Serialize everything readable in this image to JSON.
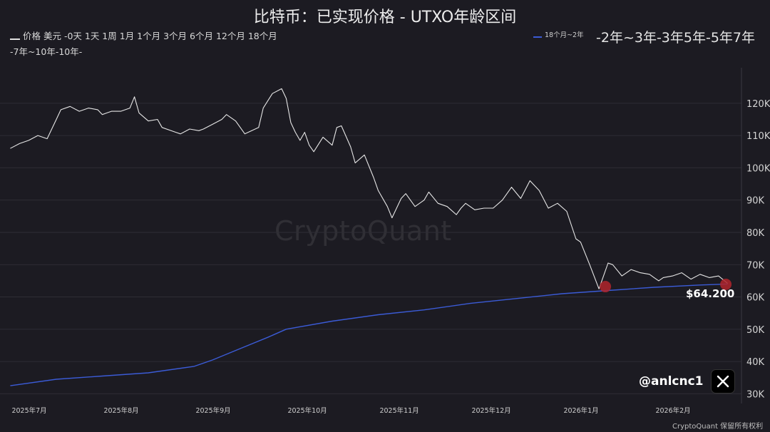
{
  "title": "比特币：已实现价格 - UTXO年龄区间",
  "legend": {
    "left_line1": "价格 美元 -0天 1天 1周 1月 1个月 3个月 6个月 12个月 18个月",
    "left_line2": "-7年~10年-10年-",
    "mid": "18个月~2年",
    "right": "-2年~3年-3年5年-5年7年"
  },
  "watermark": "CryptoQuant",
  "price_label": "$64.200",
  "handle": "@anlcnc1",
  "footer": "CryptoQuant 保留所有权利",
  "colors": {
    "background": "#1c1b22",
    "price_line": "#e6e6e6",
    "utxo_line": "#3b5bd6",
    "marker": "#b0242c"
  },
  "chart_data": {
    "type": "line",
    "title": "比特币：已实现价格 - UTXO年龄区间",
    "y_ticks": [
      30000,
      40000,
      50000,
      60000,
      70000,
      80000,
      90000,
      100000,
      110000,
      120000
    ],
    "y_tick_labels": [
      "30K",
      "40K",
      "50K",
      "60K",
      "70K",
      "80K",
      "90K",
      "100K",
      "110K",
      "120K"
    ],
    "ylim": [
      27000,
      131000
    ],
    "x_tick_labels": [
      "2025年7月",
      "2025年8月",
      "2025年9月",
      "2025年10月",
      "2025年11月",
      "2025年12月",
      "2026年1月",
      "2026年2月"
    ],
    "x_tick_positions": [
      0,
      1,
      2,
      3,
      4,
      5,
      6,
      7
    ],
    "xlim": [
      -0.05,
      7.95
    ],
    "grid": true,
    "series": [
      {
        "name": "价格 美元",
        "x": [
          0.0,
          0.1,
          0.2,
          0.3,
          0.4,
          0.5,
          0.55,
          0.65,
          0.75,
          0.85,
          0.95,
          1.0,
          1.05,
          1.1,
          1.2,
          1.3,
          1.35,
          1.4,
          1.5,
          1.6,
          1.65,
          1.8,
          1.85,
          1.95,
          2.05,
          2.1,
          2.2,
          2.3,
          2.35,
          2.45,
          2.55,
          2.7,
          2.75,
          2.85,
          2.95,
          3.0,
          3.05,
          3.1,
          3.15,
          3.2,
          3.25,
          3.3,
          3.4,
          3.5,
          3.55,
          3.6,
          3.7,
          3.75,
          3.85,
          3.95,
          4.0,
          4.1,
          4.15,
          4.25,
          4.3,
          4.4,
          4.5,
          4.55,
          4.65,
          4.75,
          4.85,
          4.9,
          4.95,
          5.05,
          5.15,
          5.25,
          5.35,
          5.45,
          5.55,
          5.65,
          5.75,
          5.85,
          5.95,
          6.05,
          6.15,
          6.2,
          6.3,
          6.4,
          6.5,
          6.55,
          6.65,
          6.75,
          6.85,
          6.95,
          7.0,
          7.05,
          7.1,
          7.2,
          7.3,
          7.4,
          7.5,
          7.6,
          7.7,
          7.8
        ],
        "y": [
          106000,
          107500,
          108500,
          110000,
          109000,
          115000,
          118000,
          119000,
          117500,
          118500,
          118000,
          116500,
          117000,
          117500,
          117500,
          118500,
          122000,
          117000,
          114500,
          115000,
          112500,
          111000,
          110500,
          112000,
          111500,
          112000,
          113500,
          115000,
          116500,
          114500,
          110500,
          112500,
          118500,
          123000,
          124500,
          121500,
          114000,
          111000,
          108500,
          111000,
          107000,
          105000,
          109500,
          107000,
          112500,
          113000,
          106500,
          101500,
          104000,
          97000,
          93000,
          88000,
          84500,
          90500,
          92000,
          88000,
          90000,
          92500,
          89000,
          88000,
          85500,
          87500,
          89000,
          87000,
          87500,
          87500,
          90000,
          94000,
          90500,
          96000,
          93000,
          87500,
          89000,
          86500,
          78000,
          77000,
          70000,
          62500,
          70500,
          70000,
          66500,
          68500,
          67500,
          67000,
          66000,
          65000,
          66000,
          66500,
          67500,
          65500,
          67000,
          66000,
          66500,
          64200
        ]
      },
      {
        "name": "18个月~2年",
        "x": [
          0.0,
          0.5,
          1.0,
          1.5,
          2.0,
          2.2,
          2.5,
          2.8,
          3.0,
          3.5,
          4.0,
          4.5,
          5.0,
          5.5,
          6.0,
          6.5,
          7.0,
          7.5,
          7.8
        ],
        "y": [
          32500,
          34500,
          35500,
          36500,
          38500,
          40500,
          44000,
          47500,
          50000,
          52500,
          54500,
          56000,
          58000,
          59500,
          61000,
          62000,
          63000,
          63700,
          64000
        ]
      }
    ],
    "markers": [
      {
        "x": 6.47,
        "y": 63200
      },
      {
        "x": 7.78,
        "y": 63900
      }
    ],
    "annotation": "$64.200"
  }
}
